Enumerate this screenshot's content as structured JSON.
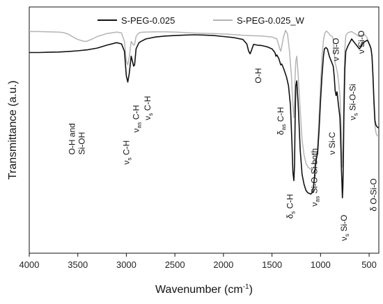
{
  "chart_data": {
    "type": "line",
    "xlabel": "Wavenumber (cm",
    "xlabel_sup": "-1",
    "xlabel_close": ")",
    "ylabel": "Transmittance (a.u.)",
    "xlim": [
      4000,
      400
    ],
    "ylim": [
      0,
      100
    ],
    "x_ticks": [
      "4000",
      "3500",
      "3000",
      "2500",
      "2000",
      "1500",
      "1000",
      "500"
    ],
    "legend_position": "top",
    "series": [
      {
        "name": "S-PEG-0.025",
        "color": "#111111",
        "points": [
          [
            4000,
            81.5
          ],
          [
            3900,
            81.5
          ],
          [
            3800,
            81.6
          ],
          [
            3700,
            81.7
          ],
          [
            3600,
            81.9
          ],
          [
            3500,
            82.2
          ],
          [
            3400,
            82.6
          ],
          [
            3300,
            83.3
          ],
          [
            3200,
            84.5
          ],
          [
            3100,
            85.5
          ],
          [
            3050,
            85.0
          ],
          [
            3020,
            82.0
          ],
          [
            3000,
            72.0
          ],
          [
            2985,
            69.5
          ],
          [
            2970,
            73.0
          ],
          [
            2950,
            80.0
          ],
          [
            2925,
            76.0
          ],
          [
            2915,
            76.5
          ],
          [
            2900,
            83.0
          ],
          [
            2870,
            85.5
          ],
          [
            2850,
            86.0
          ],
          [
            2800,
            87.0
          ],
          [
            2700,
            87.8
          ],
          [
            2600,
            88.2
          ],
          [
            2500,
            88.4
          ],
          [
            2400,
            88.6
          ],
          [
            2300,
            88.7
          ],
          [
            2200,
            88.6
          ],
          [
            2100,
            88.4
          ],
          [
            2000,
            88.0
          ],
          [
            1900,
            87.6
          ],
          [
            1800,
            86.8
          ],
          [
            1760,
            85.0
          ],
          [
            1740,
            82.0
          ],
          [
            1725,
            81.0
          ],
          [
            1710,
            82.5
          ],
          [
            1690,
            84.8
          ],
          [
            1650,
            84.5
          ],
          [
            1600,
            84.3
          ],
          [
            1550,
            83.8
          ],
          [
            1500,
            83.0
          ],
          [
            1470,
            81.5
          ],
          [
            1460,
            80.0
          ],
          [
            1450,
            80.5
          ],
          [
            1430,
            79.0
          ],
          [
            1410,
            76.5
          ],
          [
            1400,
            76.8
          ],
          [
            1380,
            75.0
          ],
          [
            1350,
            71.5
          ],
          [
            1330,
            68.0
          ],
          [
            1310,
            60.0
          ],
          [
            1295,
            45.0
          ],
          [
            1285,
            33.0
          ],
          [
            1275,
            29.5
          ],
          [
            1268,
            36.0
          ],
          [
            1262,
            54.0
          ],
          [
            1255,
            68.0
          ],
          [
            1245,
            70.0
          ],
          [
            1230,
            60.0
          ],
          [
            1210,
            42.0
          ],
          [
            1190,
            32.0
          ],
          [
            1170,
            28.0
          ],
          [
            1150,
            25.5
          ],
          [
            1130,
            24.5
          ],
          [
            1100,
            24.0
          ],
          [
            1080,
            25.0
          ],
          [
            1065,
            30.0
          ],
          [
            1050,
            36.5
          ],
          [
            1040,
            39.0
          ],
          [
            1030,
            40.5
          ],
          [
            1015,
            50.0
          ],
          [
            1000,
            62.0
          ],
          [
            985,
            72.0
          ],
          [
            970,
            80.0
          ],
          [
            960,
            83.0
          ],
          [
            945,
            83.5
          ],
          [
            930,
            83.0
          ],
          [
            910,
            80.0
          ],
          [
            890,
            78.0
          ],
          [
            870,
            76.0
          ],
          [
            860,
            72.0
          ],
          [
            850,
            66.0
          ],
          [
            840,
            64.0
          ],
          [
            830,
            65.5
          ],
          [
            815,
            60.0
          ],
          [
            800,
            55.0
          ],
          [
            790,
            42.0
          ],
          [
            785,
            34.0
          ],
          [
            780,
            29.0
          ],
          [
            775,
            22.5
          ],
          [
            770,
            27.0
          ],
          [
            765,
            38.0
          ],
          [
            760,
            55.0
          ],
          [
            750,
            75.0
          ],
          [
            740,
            82.0
          ],
          [
            720,
            84.0
          ],
          [
            700,
            85.5
          ],
          [
            680,
            87.0
          ],
          [
            660,
            86.0
          ],
          [
            640,
            85.0
          ],
          [
            620,
            84.0
          ],
          [
            600,
            83.0
          ],
          [
            580,
            84.0
          ],
          [
            560,
            85.5
          ],
          [
            540,
            86.0
          ],
          [
            520,
            86.5
          ],
          [
            510,
            86.0
          ],
          [
            500,
            85.0
          ],
          [
            490,
            84.0
          ],
          [
            480,
            83.0
          ],
          [
            470,
            80.0
          ],
          [
            460,
            72.0
          ],
          [
            450,
            62.0
          ],
          [
            440,
            54.0
          ],
          [
            430,
            52.0
          ],
          [
            420,
            51.5
          ],
          [
            410,
            51.0
          ],
          [
            400,
            51.0
          ]
        ]
      },
      {
        "name": "S-PEG-0.025_W",
        "color": "#b4b4b4",
        "points": [
          [
            4000,
            90.0
          ],
          [
            3900,
            90.0
          ],
          [
            3800,
            89.9
          ],
          [
            3700,
            89.8
          ],
          [
            3650,
            89.6
          ],
          [
            3600,
            89.0
          ],
          [
            3550,
            87.8
          ],
          [
            3500,
            86.8
          ],
          [
            3450,
            86.2
          ],
          [
            3420,
            86.0
          ],
          [
            3400,
            86.2
          ],
          [
            3350,
            87.0
          ],
          [
            3300,
            88.0
          ],
          [
            3200,
            89.2
          ],
          [
            3100,
            89.8
          ],
          [
            3050,
            89.5
          ],
          [
            3020,
            86.0
          ],
          [
            3000,
            78.0
          ],
          [
            2985,
            76.5
          ],
          [
            2970,
            79.5
          ],
          [
            2950,
            86.0
          ],
          [
            2925,
            84.5
          ],
          [
            2915,
            84.8
          ],
          [
            2900,
            88.0
          ],
          [
            2870,
            89.5
          ],
          [
            2850,
            89.7
          ],
          [
            2800,
            89.8
          ],
          [
            2700,
            89.9
          ],
          [
            2600,
            89.9
          ],
          [
            2500,
            89.8
          ],
          [
            2400,
            89.6
          ],
          [
            2300,
            89.4
          ],
          [
            2200,
            89.3
          ],
          [
            2100,
            89.2
          ],
          [
            2000,
            89.0
          ],
          [
            1900,
            88.8
          ],
          [
            1800,
            88.5
          ],
          [
            1700,
            88.3
          ],
          [
            1600,
            88.2
          ],
          [
            1500,
            87.8
          ],
          [
            1450,
            87.0
          ],
          [
            1420,
            83.0
          ],
          [
            1410,
            82.0
          ],
          [
            1400,
            84.0
          ],
          [
            1380,
            88.0
          ],
          [
            1360,
            90.5
          ],
          [
            1340,
            89.0
          ],
          [
            1320,
            82.0
          ],
          [
            1300,
            72.0
          ],
          [
            1285,
            60.0
          ],
          [
            1275,
            55.0
          ],
          [
            1268,
            62.0
          ],
          [
            1262,
            72.0
          ],
          [
            1255,
            78.0
          ],
          [
            1245,
            80.0
          ],
          [
            1230,
            72.0
          ],
          [
            1210,
            58.0
          ],
          [
            1190,
            46.0
          ],
          [
            1170,
            40.0
          ],
          [
            1150,
            36.5
          ],
          [
            1130,
            35.0
          ],
          [
            1100,
            34.0
          ],
          [
            1080,
            34.5
          ],
          [
            1060,
            35.5
          ],
          [
            1045,
            39.0
          ],
          [
            1035,
            41.0
          ],
          [
            1020,
            51.0
          ],
          [
            1000,
            68.0
          ],
          [
            985,
            80.0
          ],
          [
            970,
            86.5
          ],
          [
            955,
            89.5
          ],
          [
            940,
            90.2
          ],
          [
            920,
            89.5
          ],
          [
            900,
            88.5
          ],
          [
            880,
            88.0
          ],
          [
            870,
            87.0
          ],
          [
            860,
            82.0
          ],
          [
            850,
            77.0
          ],
          [
            840,
            76.0
          ],
          [
            825,
            73.0
          ],
          [
            810,
            68.0
          ],
          [
            800,
            64.0
          ],
          [
            790,
            54.0
          ],
          [
            780,
            40.0
          ],
          [
            775,
            35.0
          ],
          [
            768,
            42.0
          ],
          [
            760,
            65.0
          ],
          [
            750,
            83.0
          ],
          [
            740,
            88.5
          ],
          [
            720,
            89.5
          ],
          [
            700,
            89.8
          ],
          [
            680,
            90.0
          ],
          [
            660,
            89.5
          ],
          [
            640,
            89.0
          ],
          [
            620,
            88.5
          ],
          [
            600,
            88.0
          ],
          [
            580,
            88.5
          ],
          [
            560,
            89.0
          ],
          [
            540,
            88.5
          ],
          [
            520,
            87.5
          ],
          [
            510,
            86.0
          ],
          [
            500,
            85.0
          ],
          [
            490,
            84.5
          ],
          [
            480,
            83.0
          ],
          [
            470,
            80.0
          ],
          [
            460,
            72.0
          ],
          [
            450,
            60.0
          ],
          [
            440,
            52.0
          ],
          [
            430,
            49.0
          ],
          [
            420,
            48.0
          ],
          [
            410,
            47.5
          ],
          [
            400,
            47.5
          ]
        ]
      }
    ]
  },
  "annotations": [
    {
      "id": "oh-sioh",
      "lines": [
        "O-H and",
        "Si-OH"
      ],
      "wn": 3530,
      "y": 40
    },
    {
      "id": "vs-ch",
      "pre": "ν",
      "sub": "s",
      "post": " C-H",
      "wn": 3000,
      "y": 36
    },
    {
      "id": "vas-ch",
      "pre": "ν",
      "sub": "as",
      "post": " C-H",
      "wn": 2900,
      "y": 49
    },
    {
      "id": "vs-ch-2",
      "pre": "ν",
      "sub": "s",
      "post": " C-H",
      "wn": 2780,
      "y": 54
    },
    {
      "id": "oh",
      "pre": "",
      "sub": "",
      "post": "O-H",
      "wn": 1640,
      "y": 69
    },
    {
      "id": "das-ch",
      "pre": "δ",
      "sub": "as",
      "post": " C-H",
      "wn": 1410,
      "y": 48
    },
    {
      "id": "ds-ch",
      "pre": "δ",
      "sub": "s",
      "post": " C-H",
      "wn": 1315,
      "y": 14
    },
    {
      "id": "vas-siosi",
      "pre": "ν",
      "sub": "as",
      "post": " Si-O-Si both",
      "wn": 1065,
      "y": 19
    },
    {
      "id": "v-sic",
      "pre": "ν",
      "sub": "",
      "post": " Si-C",
      "wn": 880,
      "y": 40
    },
    {
      "id": "vs-sio",
      "pre": "ν",
      "sub": "s",
      "post": " Si-O",
      "wn": 760,
      "y": 5
    },
    {
      "id": "v-sio",
      "pre": "ν",
      "sub": "",
      "post": " Si-O",
      "wn": 840,
      "y": 78
    },
    {
      "id": "vs-siosi",
      "pre": "ν",
      "sub": "s",
      "post": " Si-O-Si",
      "wn": 668,
      "y": 54
    },
    {
      "id": "v-sio-2",
      "pre": "ν",
      "sub": "",
      "post": " Si-O",
      "wn": 578,
      "y": 81
    },
    {
      "id": "d-siosi",
      "pre": "δ",
      "sub": "",
      "post": " O-Si-O",
      "wn": 455,
      "y": 17
    }
  ]
}
